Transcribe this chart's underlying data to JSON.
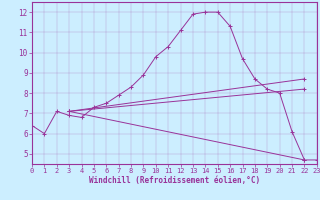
{
  "bg_color": "#cceeff",
  "line_color": "#993399",
  "xlabel": "Windchill (Refroidissement éolien,°C)",
  "xlim": [
    0,
    23
  ],
  "ylim": [
    4.5,
    12.5
  ],
  "xticks": [
    0,
    1,
    2,
    3,
    4,
    5,
    6,
    7,
    8,
    9,
    10,
    11,
    12,
    13,
    14,
    15,
    16,
    17,
    18,
    19,
    20,
    21,
    22,
    23
  ],
  "yticks": [
    5,
    6,
    7,
    8,
    9,
    10,
    11,
    12
  ],
  "main_x": [
    0,
    1,
    2,
    3,
    4,
    5,
    6,
    7,
    8,
    9,
    10,
    11,
    12,
    13,
    14,
    15,
    16,
    17,
    18,
    19,
    20,
    21,
    22,
    23
  ],
  "main_y": [
    6.4,
    6.0,
    7.1,
    6.9,
    6.8,
    7.3,
    7.5,
    7.9,
    8.3,
    8.9,
    9.8,
    10.3,
    11.1,
    11.9,
    12.0,
    12.0,
    11.3,
    9.7,
    8.7,
    8.2,
    8.0,
    6.1,
    4.7,
    4.7
  ],
  "lines": [
    {
      "x": [
        3,
        22
      ],
      "y": [
        7.1,
        8.7
      ]
    },
    {
      "x": [
        3,
        22
      ],
      "y": [
        7.1,
        4.7
      ]
    },
    {
      "x": [
        3,
        22
      ],
      "y": [
        7.1,
        8.2
      ]
    }
  ],
  "figsize": [
    3.2,
    2.0
  ],
  "dpi": 100
}
